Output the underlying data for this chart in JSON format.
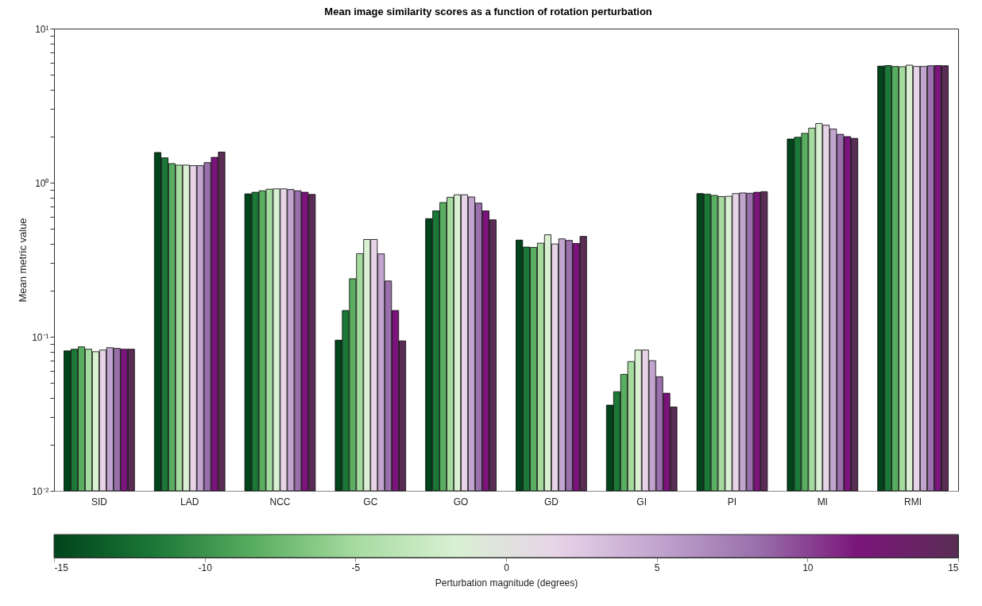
{
  "chart_data": {
    "type": "bar",
    "title": "Mean image similarity scores as a function of rotation perturbation",
    "ylabel": "Mean metric value",
    "categories": [
      "SID",
      "LAD",
      "NCC",
      "GC",
      "GO",
      "GD",
      "GI",
      "PI",
      "MI",
      "RMI"
    ],
    "series": [
      {
        "color": "#00441b",
        "values": [
          0.081,
          1.57,
          0.846,
          0.095,
          0.584,
          0.424,
          0.036,
          0.85,
          1.92,
          5.71
        ]
      },
      {
        "color": "#1b7837",
        "values": [
          0.083,
          1.45,
          0.866,
          0.148,
          0.656,
          0.382,
          0.044,
          0.843,
          1.97,
          5.76
        ]
      },
      {
        "color": "#5aae61",
        "values": [
          0.086,
          1.33,
          0.886,
          0.238,
          0.743,
          0.38,
          0.057,
          0.827,
          2.09,
          5.68
        ]
      },
      {
        "color": "#a6dba0",
        "values": [
          0.083,
          1.3,
          0.907,
          0.346,
          0.804,
          0.405,
          0.069,
          0.812,
          2.26,
          5.66
        ]
      },
      {
        "color": "#d9f0d3",
        "values": [
          0.08,
          1.3,
          0.912,
          0.428,
          0.835,
          0.459,
          0.082,
          0.816,
          2.42,
          5.79
        ]
      },
      {
        "color": "#e7d4e8",
        "values": [
          0.082,
          1.29,
          0.912,
          0.428,
          0.835,
          0.4,
          0.082,
          0.85,
          2.36,
          5.68
        ]
      },
      {
        "color": "#c2a5cf",
        "values": [
          0.085,
          1.29,
          0.903,
          0.345,
          0.808,
          0.432,
          0.07,
          0.858,
          2.23,
          5.68
        ]
      },
      {
        "color": "#9970ab",
        "values": [
          0.084,
          1.35,
          0.886,
          0.23,
          0.737,
          0.422,
          0.055,
          0.854,
          2.06,
          5.74
        ]
      },
      {
        "color": "#7b157b",
        "values": [
          0.083,
          1.46,
          0.866,
          0.148,
          0.656,
          0.403,
          0.043,
          0.866,
          1.99,
          5.76
        ]
      },
      {
        "color": "#5a2d55",
        "values": [
          0.083,
          1.58,
          0.839,
          0.094,
          0.574,
          0.448,
          0.035,
          0.874,
          1.94,
          5.74
        ]
      }
    ],
    "log": true,
    "ylim": [
      0.01,
      10
    ],
    "yticks": [
      {
        "value": 0.01,
        "label": "10⁻²"
      },
      {
        "value": 0.02,
        "label": null
      },
      {
        "value": 0.03,
        "label": null
      },
      {
        "value": 0.04,
        "label": null
      },
      {
        "value": 0.05,
        "label": null
      },
      {
        "value": 0.06,
        "label": null
      },
      {
        "value": 0.07,
        "label": null
      },
      {
        "value": 0.08,
        "label": null
      },
      {
        "value": 0.09,
        "label": null
      },
      {
        "value": 0.1,
        "label": "10⁻¹"
      },
      {
        "value": 0.2,
        "label": null
      },
      {
        "value": 0.3,
        "label": null
      },
      {
        "value": 0.4,
        "label": null
      },
      {
        "value": 0.5,
        "label": null
      },
      {
        "value": 0.6,
        "label": null
      },
      {
        "value": 0.7,
        "label": null
      },
      {
        "value": 0.8,
        "label": null
      },
      {
        "value": 0.9,
        "label": null
      },
      {
        "value": 1,
        "label": "10⁰"
      },
      {
        "value": 2,
        "label": null
      },
      {
        "value": 3,
        "label": null
      },
      {
        "value": 4,
        "label": null
      },
      {
        "value": 5,
        "label": null
      },
      {
        "value": 6,
        "label": null
      },
      {
        "value": 7,
        "label": null
      },
      {
        "value": 8,
        "label": null
      },
      {
        "value": 9,
        "label": null
      },
      {
        "value": 10,
        "label": "10¹"
      }
    ],
    "clabel": "Perturbation magnitude (degrees)",
    "clim": [
      -15,
      15
    ],
    "cticks": [
      -15,
      -10,
      -5,
      0,
      5,
      10,
      15
    ]
  }
}
